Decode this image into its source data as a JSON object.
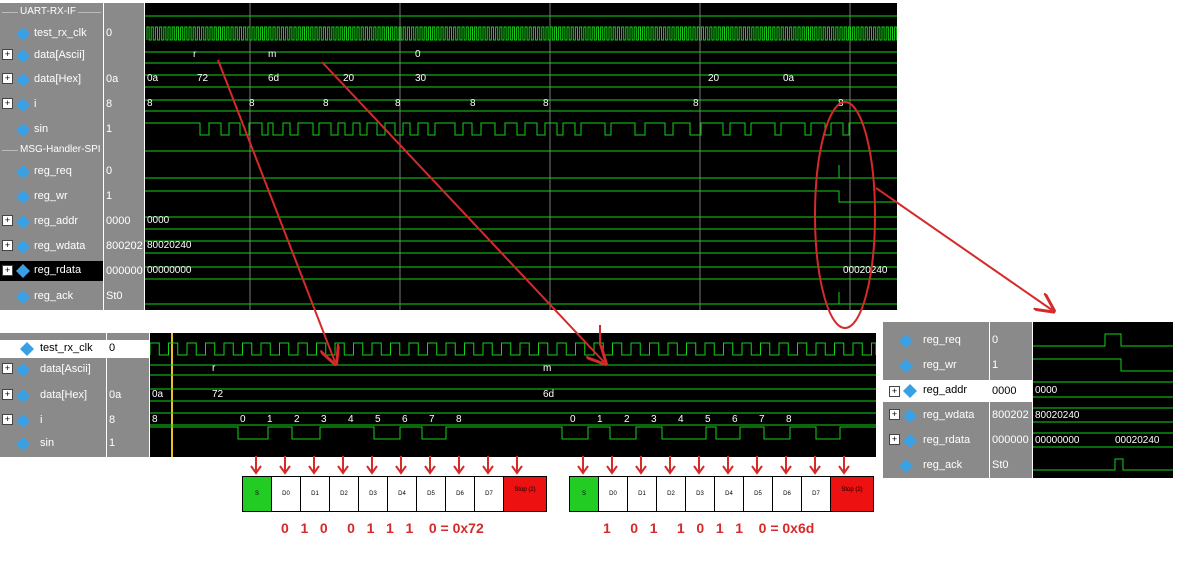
{
  "top": {
    "group1": "UART-RX-IF",
    "group2": "MSG-Handler-SPI",
    "signals": [
      {
        "name": "test_rx_clk",
        "value": "0",
        "expandable": false
      },
      {
        "name": "data[Ascii]",
        "value": "",
        "expandable": true
      },
      {
        "name": "data[Hex]",
        "value": "0a",
        "expandable": true
      },
      {
        "name": "i",
        "value": "8",
        "expandable": true
      },
      {
        "name": "sin",
        "value": "1",
        "expandable": false
      },
      {
        "name": "reg_req",
        "value": "0",
        "expandable": false
      },
      {
        "name": "reg_wr",
        "value": "1",
        "expandable": false
      },
      {
        "name": "reg_addr",
        "value": "0000",
        "expandable": true
      },
      {
        "name": "reg_wdata",
        "value": "800202",
        "expandable": true
      },
      {
        "name": "reg_rdata",
        "value": "000000",
        "expandable": true
      },
      {
        "name": "reg_ack",
        "value": "St0",
        "expandable": false
      }
    ],
    "wave_labels": {
      "ascii": [
        "r",
        "m",
        "0"
      ],
      "hex": [
        "0a",
        "72",
        "6d",
        "20",
        "30",
        "20",
        "0a"
      ],
      "i": [
        "8",
        "8",
        "8",
        "8",
        "8",
        "8",
        "8",
        "8"
      ],
      "addr": "0000",
      "wdata": "80020240",
      "rdata_old": "00000000",
      "rdata_new": "00020240"
    }
  },
  "bottom": {
    "signals": [
      {
        "name": "test_rx_clk",
        "value": "0",
        "expandable": false
      },
      {
        "name": "data[Ascii]",
        "value": "",
        "expandable": true
      },
      {
        "name": "data[Hex]",
        "value": "0a",
        "expandable": true
      },
      {
        "name": "i",
        "value": "8",
        "expandable": true
      },
      {
        "name": "sin",
        "value": "1",
        "expandable": false
      }
    ],
    "wave_labels": {
      "ascii": [
        "r",
        "m"
      ],
      "hex_start": "0a",
      "hex_first": "72",
      "hex_second": "6d",
      "i_start": "8",
      "i_counts": [
        "0",
        "1",
        "2",
        "3",
        "4",
        "5",
        "6",
        "7",
        "8"
      ]
    }
  },
  "right": {
    "signals": [
      {
        "name": "reg_req",
        "value": "0",
        "expandable": false
      },
      {
        "name": "reg_wr",
        "value": "1",
        "expandable": false
      },
      {
        "name": "reg_addr",
        "value": "0000",
        "expandable": true
      },
      {
        "name": "reg_wdata",
        "value": "800202",
        "expandable": true
      },
      {
        "name": "reg_rdata",
        "value": "000000",
        "expandable": true
      },
      {
        "name": "reg_ack",
        "value": "St0",
        "expandable": false
      }
    ],
    "wave_labels": {
      "addr": "0000",
      "wdata": "80020240",
      "rdata_old": "00000000",
      "rdata_new": "00020240"
    }
  },
  "frame1": {
    "boxes": [
      "S",
      "D0",
      "D1",
      "D2",
      "D3",
      "D4",
      "D5",
      "D6",
      "D7",
      "Stop (2)"
    ],
    "bits": "0   1   0     0   1   1   1    0",
    "result": "= 0x72"
  },
  "frame2": {
    "boxes": [
      "S",
      "D0",
      "D1",
      "D2",
      "D3",
      "D4",
      "D5",
      "D6",
      "D7",
      "Stop (2)"
    ],
    "bits": "1     0   1     1   0   1   1    0",
    "result": "= 0x6d"
  },
  "colors": {
    "wave": "#14d214",
    "annotation": "#d52a2a",
    "start_box": "#22cc22",
    "stop_box": "#ee1111",
    "panel": "#8a8a8a"
  }
}
